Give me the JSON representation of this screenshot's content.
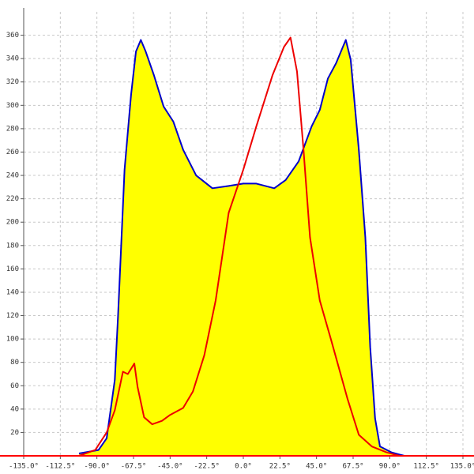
{
  "chart_data": {
    "type": "area",
    "xlim": [
      -135,
      135
    ],
    "ylim": [
      0,
      380
    ],
    "xticks": [
      {
        "value": -135,
        "label": "-135.0°"
      },
      {
        "value": -112.5,
        "label": "-112.5°"
      },
      {
        "value": -90,
        "label": "-90.0°"
      },
      {
        "value": -67.5,
        "label": "-67.5°"
      },
      {
        "value": -45,
        "label": "-45.0°"
      },
      {
        "value": -22.5,
        "label": "-22.5°"
      },
      {
        "value": 0,
        "label": "0.0°"
      },
      {
        "value": 22.5,
        "label": "22.5°"
      },
      {
        "value": 45,
        "label": "45.0°"
      },
      {
        "value": 67.5,
        "label": "67.5°"
      },
      {
        "value": 90,
        "label": "90.0°"
      },
      {
        "value": 112.5,
        "label": "112.5°"
      },
      {
        "value": 135,
        "label": "135.0°"
      }
    ],
    "yticks": [
      20,
      40,
      60,
      80,
      100,
      120,
      140,
      160,
      180,
      200,
      220,
      240,
      260,
      280,
      300,
      320,
      340,
      360
    ],
    "grid": true,
    "fill": "#ffff00",
    "axis_color": "#ff0000",
    "series": [
      {
        "color": "#0000cc",
        "filled": true,
        "x": [
          -101,
          -89,
          -84,
          -79,
          -77,
          -73,
          -69,
          -66,
          -63,
          -60,
          -55,
          -49,
          -43,
          -37,
          -29,
          -19,
          -9,
          0,
          8,
          19,
          26,
          34,
          42,
          47,
          52,
          57,
          63,
          66,
          71,
          75,
          78,
          81,
          84,
          91,
          99
        ],
        "values": [
          2,
          5,
          15,
          65,
          120,
          245,
          309,
          346,
          356,
          346,
          326,
          299,
          286,
          262,
          240,
          229,
          231,
          233,
          233,
          229,
          236,
          252,
          282,
          296,
          323,
          336,
          356,
          339,
          262,
          187,
          93,
          32,
          8,
          3,
          0
        ]
      },
      {
        "color": "#ee0000",
        "filled": false,
        "x": [
          -101,
          -91,
          -84,
          -79,
          -74,
          -71,
          -67,
          -65,
          -61,
          -56,
          -50,
          -45,
          -37,
          -31,
          -24,
          -17,
          -9,
          0,
          8,
          18,
          25,
          29,
          33,
          37,
          41,
          47,
          54,
          64,
          71,
          79,
          88,
          96
        ],
        "values": [
          0,
          5,
          20,
          39,
          72,
          70,
          79,
          59,
          33,
          27,
          30,
          35,
          41,
          55,
          86,
          133,
          208,
          245,
          282,
          326,
          350,
          358,
          329,
          262,
          187,
          133,
          99,
          49,
          18,
          8,
          3,
          0
        ]
      }
    ]
  }
}
